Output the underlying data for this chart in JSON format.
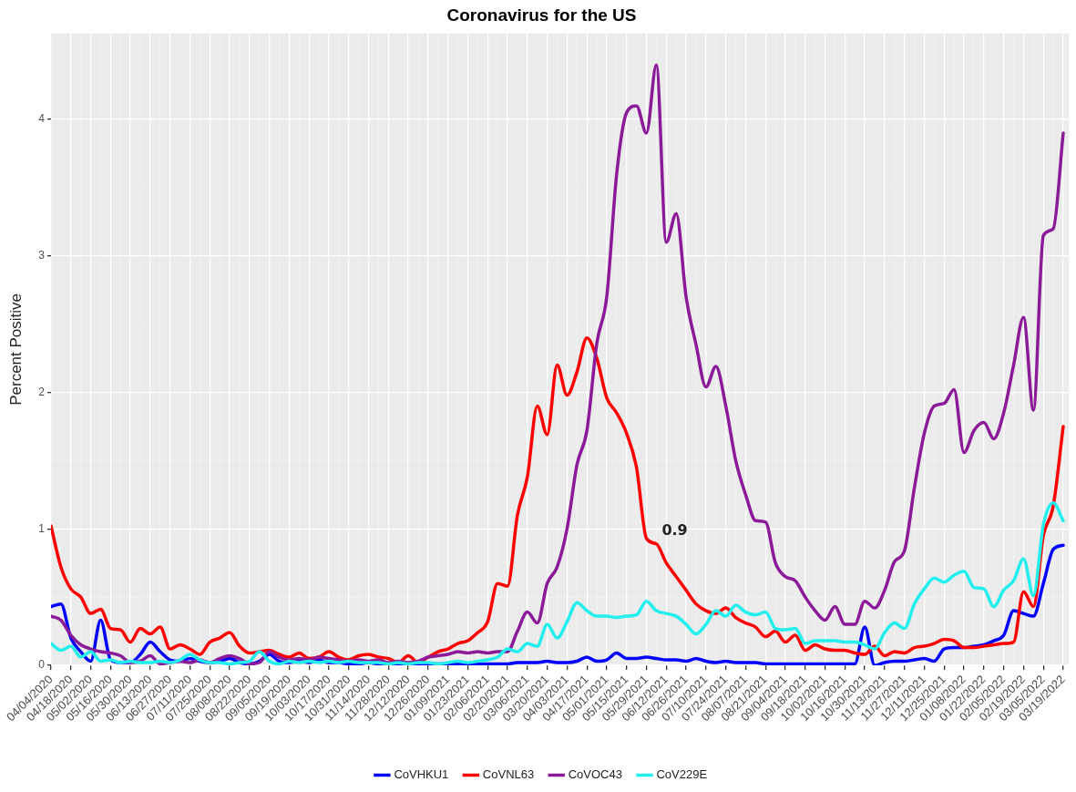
{
  "chart_data": {
    "type": "line",
    "title": "Coronavirus for the US",
    "ylabel": "Percent Positive",
    "x": [
      "2020-04-04",
      "2020-04-11",
      "2020-04-18",
      "2020-04-25",
      "2020-05-02",
      "2020-05-09",
      "2020-05-16",
      "2020-05-23",
      "2020-05-30",
      "2020-06-06",
      "2020-06-13",
      "2020-06-20",
      "2020-06-27",
      "2020-07-04",
      "2020-07-11",
      "2020-07-18",
      "2020-07-25",
      "2020-08-01",
      "2020-08-08",
      "2020-08-15",
      "2020-08-22",
      "2020-08-29",
      "2020-09-05",
      "2020-09-12",
      "2020-09-19",
      "2020-09-26",
      "2020-10-03",
      "2020-10-10",
      "2020-10-17",
      "2020-10-24",
      "2020-10-31",
      "2020-11-07",
      "2020-11-14",
      "2020-11-21",
      "2020-11-28",
      "2020-12-05",
      "2020-12-12",
      "2020-12-19",
      "2020-12-26",
      "2021-01-02",
      "2021-01-09",
      "2021-01-16",
      "2021-01-23",
      "2021-01-30",
      "2021-02-06",
      "2021-02-13",
      "2021-02-20",
      "2021-02-27",
      "2021-03-06",
      "2021-03-13",
      "2021-03-20",
      "2021-03-27",
      "2021-04-03",
      "2021-04-10",
      "2021-04-17",
      "2021-04-24",
      "2021-05-01",
      "2021-05-08",
      "2021-05-15",
      "2021-05-22",
      "2021-05-29",
      "2021-06-05",
      "2021-06-12",
      "2021-06-19",
      "2021-06-26",
      "2021-07-03",
      "2021-07-10",
      "2021-07-17",
      "2021-07-24",
      "2021-07-31",
      "2021-08-07",
      "2021-08-14",
      "2021-08-21",
      "2021-08-28",
      "2021-09-04",
      "2021-09-11",
      "2021-09-18",
      "2021-09-25",
      "2021-10-02",
      "2021-10-09",
      "2021-10-16",
      "2021-10-23",
      "2021-10-30",
      "2021-11-06",
      "2021-11-13",
      "2021-11-20",
      "2021-11-27",
      "2021-12-04",
      "2021-12-11",
      "2021-12-18",
      "2021-12-25",
      "2022-01-01",
      "2022-01-08",
      "2022-01-15",
      "2022-01-22",
      "2022-01-29",
      "2022-02-05",
      "2022-02-12",
      "2022-02-19",
      "2022-02-26",
      "2022-03-05",
      "2022-03-12",
      "2022-03-19"
    ],
    "series": [
      {
        "name": "CoVHKU1",
        "color": "#0000ff",
        "values": [
          0.43,
          0.45,
          0.2,
          0.1,
          0.03,
          0.33,
          0.04,
          0.02,
          0.02,
          0.08,
          0.17,
          0.1,
          0.04,
          0.03,
          0.05,
          0.03,
          0.02,
          0.03,
          0.05,
          0.02,
          0.01,
          0.03,
          0.08,
          0.03,
          0.02,
          0.03,
          0.02,
          0.04,
          0.02,
          0.02,
          0.01,
          0.01,
          0.02,
          0.01,
          0.01,
          0.01,
          0.01,
          0.01,
          0.01,
          0.01,
          0.01,
          0.01,
          0.01,
          0.01,
          0.01,
          0.01,
          0.01,
          0.02,
          0.02,
          0.02,
          0.03,
          0.02,
          0.02,
          0.03,
          0.06,
          0.03,
          0.04,
          0.09,
          0.05,
          0.05,
          0.06,
          0.05,
          0.04,
          0.04,
          0.03,
          0.05,
          0.03,
          0.02,
          0.03,
          0.02,
          0.02,
          0.02,
          0.01,
          0.01,
          0.01,
          0.01,
          0.01,
          0.01,
          0.01,
          0.01,
          0.01,
          0.01,
          0.28,
          0.0,
          0.02,
          0.03,
          0.03,
          0.04,
          0.05,
          0.03,
          0.12,
          0.13,
          0.13,
          0.14,
          0.15,
          0.18,
          0.22,
          0.4,
          0.38,
          0.36,
          0.6,
          0.85,
          0.88
        ]
      },
      {
        "name": "CoVNL63",
        "color": "#ff0000",
        "values": [
          1.02,
          0.72,
          0.56,
          0.5,
          0.38,
          0.41,
          0.27,
          0.26,
          0.17,
          0.27,
          0.23,
          0.28,
          0.12,
          0.15,
          0.12,
          0.08,
          0.17,
          0.2,
          0.24,
          0.14,
          0.09,
          0.1,
          0.11,
          0.08,
          0.06,
          0.09,
          0.05,
          0.06,
          0.1,
          0.06,
          0.04,
          0.07,
          0.08,
          0.06,
          0.05,
          0.02,
          0.07,
          0.02,
          0.06,
          0.1,
          0.12,
          0.16,
          0.18,
          0.24,
          0.32,
          0.6,
          0.58,
          1.1,
          1.38,
          1.9,
          1.69,
          2.2,
          1.98,
          2.15,
          2.4,
          2.25,
          1.96,
          1.85,
          1.7,
          1.45,
          0.93,
          0.89,
          0.75,
          0.65,
          0.55,
          0.45,
          0.4,
          0.38,
          0.42,
          0.35,
          0.31,
          0.28,
          0.21,
          0.25,
          0.17,
          0.22,
          0.11,
          0.15,
          0.12,
          0.11,
          0.11,
          0.09,
          0.08,
          0.14,
          0.07,
          0.1,
          0.09,
          0.13,
          0.14,
          0.16,
          0.19,
          0.18,
          0.13,
          0.13,
          0.14,
          0.15,
          0.16,
          0.17,
          0.54,
          0.43,
          0.95,
          1.17,
          1.75
        ]
      },
      {
        "name": "CoVOC43",
        "color": "#8b1a99",
        "values": [
          0.36,
          0.33,
          0.22,
          0.15,
          0.12,
          0.1,
          0.09,
          0.07,
          0.02,
          0.03,
          0.07,
          0.01,
          0.02,
          0.03,
          0.02,
          0.04,
          0.02,
          0.05,
          0.07,
          0.05,
          0.01,
          0.02,
          0.1,
          0.06,
          0.04,
          0.05,
          0.04,
          0.06,
          0.05,
          0.04,
          0.03,
          0.04,
          0.03,
          0.04,
          0.02,
          0.03,
          0.02,
          0.03,
          0.06,
          0.07,
          0.08,
          0.1,
          0.09,
          0.1,
          0.09,
          0.1,
          0.1,
          0.25,
          0.39,
          0.31,
          0.6,
          0.72,
          1.0,
          1.47,
          1.72,
          2.36,
          2.7,
          3.6,
          4.05,
          4.1,
          3.9,
          4.4,
          3.1,
          3.31,
          2.7,
          2.35,
          2.04,
          2.19,
          1.9,
          1.5,
          1.25,
          1.06,
          1.05,
          0.75,
          0.65,
          0.62,
          0.5,
          0.4,
          0.33,
          0.43,
          0.3,
          0.3,
          0.47,
          0.42,
          0.55,
          0.76,
          0.84,
          1.3,
          1.7,
          1.9,
          1.92,
          2.02,
          1.56,
          1.72,
          1.78,
          1.66,
          1.85,
          2.2,
          2.55,
          1.87,
          3.15,
          3.2,
          3.9
        ]
      },
      {
        "name": "CoV229E",
        "color": "#22eeee",
        "values": [
          0.16,
          0.11,
          0.14,
          0.06,
          0.1,
          0.03,
          0.04,
          0.02,
          0.03,
          0.02,
          0.02,
          0.03,
          0.02,
          0.04,
          0.08,
          0.04,
          0.02,
          0.02,
          0.01,
          0.02,
          0.03,
          0.1,
          0.03,
          0.01,
          0.03,
          0.02,
          0.03,
          0.02,
          0.03,
          0.02,
          0.03,
          0.02,
          0.02,
          0.02,
          0.01,
          0.02,
          0.01,
          0.02,
          0.02,
          0.01,
          0.02,
          0.03,
          0.02,
          0.03,
          0.04,
          0.06,
          0.12,
          0.1,
          0.16,
          0.14,
          0.3,
          0.2,
          0.32,
          0.46,
          0.4,
          0.36,
          0.36,
          0.35,
          0.36,
          0.37,
          0.47,
          0.4,
          0.38,
          0.36,
          0.3,
          0.23,
          0.3,
          0.4,
          0.36,
          0.44,
          0.39,
          0.37,
          0.39,
          0.27,
          0.26,
          0.27,
          0.16,
          0.18,
          0.18,
          0.18,
          0.17,
          0.17,
          0.15,
          0.12,
          0.24,
          0.31,
          0.27,
          0.45,
          0.56,
          0.64,
          0.61,
          0.66,
          0.69,
          0.57,
          0.56,
          0.43,
          0.55,
          0.62,
          0.78,
          0.51,
          1.03,
          1.19,
          1.06
        ]
      }
    ],
    "xlim": [
      "2020-04-04",
      "2022-03-23"
    ],
    "xticks": [
      {
        "value": "2020-04-04",
        "label": "04/04/2020"
      },
      {
        "value": "2020-04-18",
        "label": "04/18/2020"
      },
      {
        "value": "2020-05-02",
        "label": "05/02/2020"
      },
      {
        "value": "2020-05-16",
        "label": "05/16/2020"
      },
      {
        "value": "2020-05-30",
        "label": "05/30/2020"
      },
      {
        "value": "2020-06-13",
        "label": "06/13/2020"
      },
      {
        "value": "2020-06-27",
        "label": "06/27/2020"
      },
      {
        "value": "2020-07-11",
        "label": "07/11/2020"
      },
      {
        "value": "2020-07-25",
        "label": "07/25/2020"
      },
      {
        "value": "2020-08-08",
        "label": "08/08/2020"
      },
      {
        "value": "2020-08-22",
        "label": "08/22/2020"
      },
      {
        "value": "2020-09-05",
        "label": "09/05/2020"
      },
      {
        "value": "2020-09-19",
        "label": "09/19/2020"
      },
      {
        "value": "2020-10-03",
        "label": "10/03/2020"
      },
      {
        "value": "2020-10-17",
        "label": "10/17/2020"
      },
      {
        "value": "2020-10-31",
        "label": "10/31/2020"
      },
      {
        "value": "2020-11-14",
        "label": "11/14/2020"
      },
      {
        "value": "2020-11-28",
        "label": "11/28/2020"
      },
      {
        "value": "2020-12-12",
        "label": "12/12/2020"
      },
      {
        "value": "2020-12-26",
        "label": "12/26/2020"
      },
      {
        "value": "2021-01-09",
        "label": "01/09/2021"
      },
      {
        "value": "2021-01-23",
        "label": "01/23/2021"
      },
      {
        "value": "2021-02-06",
        "label": "02/06/2021"
      },
      {
        "value": "2021-02-20",
        "label": "02/20/2021"
      },
      {
        "value": "2021-03-06",
        "label": "03/06/2021"
      },
      {
        "value": "2021-03-20",
        "label": "03/20/2021"
      },
      {
        "value": "2021-04-03",
        "label": "04/03/2021"
      },
      {
        "value": "2021-04-17",
        "label": "04/17/2021"
      },
      {
        "value": "2021-05-01",
        "label": "05/01/2021"
      },
      {
        "value": "2021-05-15",
        "label": "05/15/2021"
      },
      {
        "value": "2021-05-29",
        "label": "05/29/2021"
      },
      {
        "value": "2021-06-12",
        "label": "06/12/2021"
      },
      {
        "value": "2021-06-26",
        "label": "06/26/2021"
      },
      {
        "value": "2021-07-10",
        "label": "07/10/2021"
      },
      {
        "value": "2021-07-24",
        "label": "07/24/2021"
      },
      {
        "value": "2021-08-07",
        "label": "08/07/2021"
      },
      {
        "value": "2021-08-21",
        "label": "08/21/2021"
      },
      {
        "value": "2021-09-04",
        "label": "09/04/2021"
      },
      {
        "value": "2021-09-18",
        "label": "09/18/2021"
      },
      {
        "value": "2021-10-02",
        "label": "10/02/2021"
      },
      {
        "value": "2021-10-16",
        "label": "10/16/2021"
      },
      {
        "value": "2021-10-30",
        "label": "10/30/2021"
      },
      {
        "value": "2021-11-13",
        "label": "11/13/2021"
      },
      {
        "value": "2021-11-27",
        "label": "11/27/2021"
      },
      {
        "value": "2021-12-11",
        "label": "12/11/2021"
      },
      {
        "value": "2021-12-25",
        "label": "12/25/2021"
      },
      {
        "value": "2022-01-08",
        "label": "01/08/2022"
      },
      {
        "value": "2022-01-22",
        "label": "01/22/2022"
      },
      {
        "value": "2022-02-05",
        "label": "02/05/2022"
      },
      {
        "value": "2022-02-19",
        "label": "02/19/2022"
      },
      {
        "value": "2022-03-05",
        "label": "03/05/2022"
      },
      {
        "value": "2022-03-19",
        "label": "03/19/2022"
      }
    ],
    "ylim": [
      0,
      4.63
    ],
    "yticks": [
      0,
      1,
      2,
      3,
      4
    ],
    "annotations": [
      {
        "text": "0.9",
        "x": "2021-06-05",
        "y": 0.89
      }
    ],
    "grid": true,
    "legend": "bottom",
    "marker": "none",
    "line_style": "solid"
  }
}
